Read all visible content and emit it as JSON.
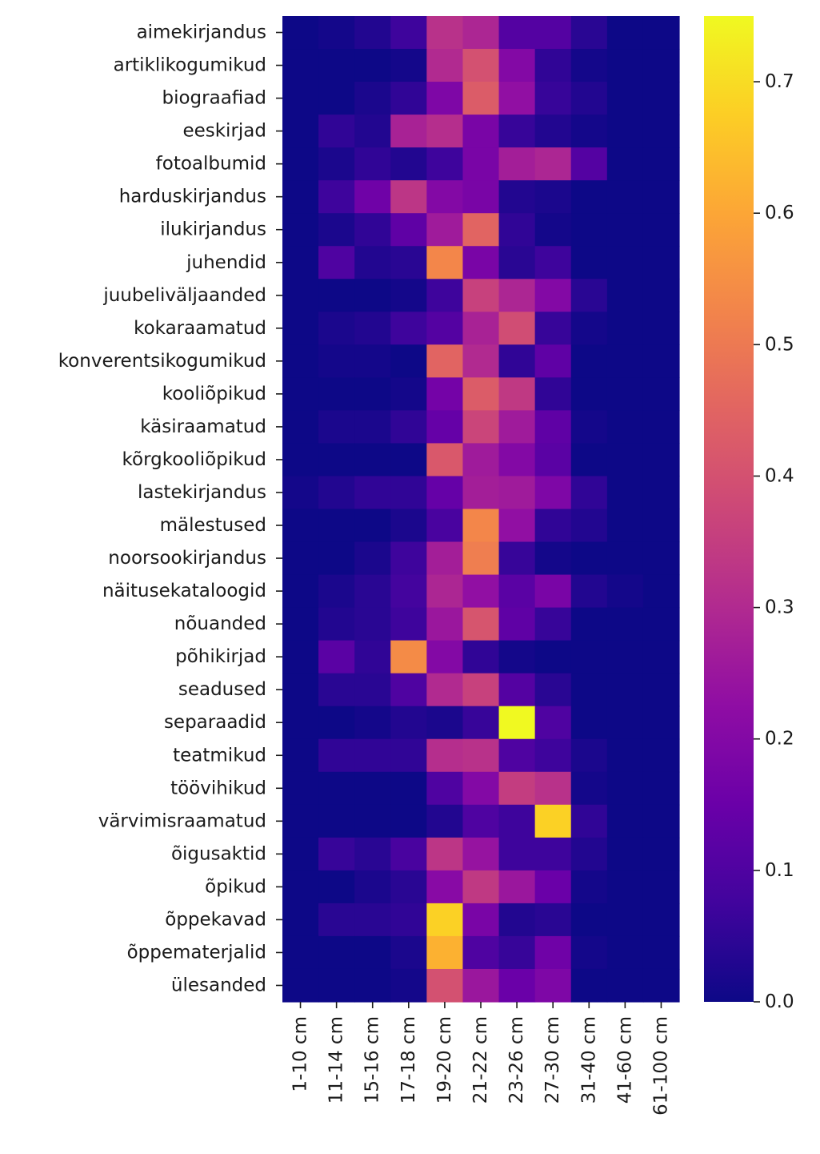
{
  "chart_data": {
    "type": "heatmap",
    "title": "",
    "xlabel": "",
    "ylabel": "",
    "colormap": "plasma",
    "vmin": 0,
    "vmax": 0.75,
    "colorbar_ticks": [
      0.0,
      0.1,
      0.2,
      0.3,
      0.4,
      0.5,
      0.6,
      0.7
    ],
    "colorbar_tick_labels": [
      "0.0",
      "0.1",
      "0.2",
      "0.3",
      "0.4",
      "0.5",
      "0.6",
      "0.7"
    ],
    "x_categories": [
      "1-10 cm",
      "11-14 cm",
      "15-16 cm",
      "17-18 cm",
      "19-20 cm",
      "21-22 cm",
      "23-26 cm",
      "27-30 cm",
      "31-40 cm",
      "41-60 cm",
      "61-100 cm"
    ],
    "y_categories": [
      "aimekirjandus",
      "artiklikogumikud",
      "biograafiad",
      "eeskirjad",
      "fotoalbumid",
      "harduskirjandus",
      "ilukirjandus",
      "juhendid",
      "juubeliväljaanded",
      "kokaraamatud",
      "konverentsikogumikud",
      "kooliõpikud",
      "käsiraamatud",
      "kõrgkooliõpikud",
      "lastekirjandus",
      "mälestused",
      "noorsookirjandus",
      "näitusekataloogid",
      "nõuanded",
      "põhikirjad",
      "seadused",
      "separaadid",
      "teatmikud",
      "töövihikud",
      "värvimisraamatud",
      "õigusaktid",
      "õpikud",
      "õppekavad",
      "õppematerjalid",
      "ülesanded"
    ],
    "values": [
      [
        0.0,
        0.01,
        0.03,
        0.07,
        0.32,
        0.29,
        0.11,
        0.11,
        0.04,
        0.0,
        0.0
      ],
      [
        0.0,
        0.0,
        0.0,
        0.01,
        0.3,
        0.4,
        0.2,
        0.05,
        0.01,
        0.0,
        0.0
      ],
      [
        0.0,
        0.0,
        0.02,
        0.05,
        0.19,
        0.43,
        0.23,
        0.06,
        0.03,
        0.0,
        0.0
      ],
      [
        0.0,
        0.05,
        0.03,
        0.28,
        0.31,
        0.18,
        0.06,
        0.03,
        0.01,
        0.0,
        0.0
      ],
      [
        0.0,
        0.02,
        0.05,
        0.03,
        0.07,
        0.18,
        0.27,
        0.29,
        0.11,
        0.0,
        0.0
      ],
      [
        0.0,
        0.07,
        0.16,
        0.33,
        0.2,
        0.18,
        0.03,
        0.02,
        0.0,
        0.0,
        0.0
      ],
      [
        0.0,
        0.02,
        0.05,
        0.13,
        0.26,
        0.45,
        0.05,
        0.01,
        0.0,
        0.0,
        0.0
      ],
      [
        0.0,
        0.1,
        0.03,
        0.04,
        0.53,
        0.18,
        0.04,
        0.07,
        0.0,
        0.0,
        0.0
      ],
      [
        0.0,
        0.0,
        0.0,
        0.01,
        0.07,
        0.36,
        0.29,
        0.2,
        0.04,
        0.0,
        0.0
      ],
      [
        0.0,
        0.02,
        0.03,
        0.07,
        0.11,
        0.28,
        0.39,
        0.06,
        0.01,
        0.0,
        0.0
      ],
      [
        0.0,
        0.01,
        0.01,
        0.0,
        0.45,
        0.3,
        0.05,
        0.13,
        0.0,
        0.0,
        0.0
      ],
      [
        0.0,
        0.0,
        0.0,
        0.01,
        0.17,
        0.43,
        0.34,
        0.05,
        0.0,
        0.0,
        0.0
      ],
      [
        0.0,
        0.02,
        0.02,
        0.05,
        0.14,
        0.37,
        0.26,
        0.13,
        0.01,
        0.0,
        0.0
      ],
      [
        0.0,
        0.0,
        0.0,
        0.0,
        0.42,
        0.26,
        0.2,
        0.12,
        0.0,
        0.0,
        0.0
      ],
      [
        0.01,
        0.03,
        0.05,
        0.05,
        0.14,
        0.27,
        0.26,
        0.19,
        0.05,
        0.0,
        0.0
      ],
      [
        0.0,
        0.0,
        0.0,
        0.02,
        0.09,
        0.53,
        0.23,
        0.05,
        0.03,
        0.0,
        0.0
      ],
      [
        0.0,
        0.0,
        0.02,
        0.07,
        0.27,
        0.51,
        0.06,
        0.01,
        0.0,
        0.0,
        0.0
      ],
      [
        0.0,
        0.02,
        0.04,
        0.08,
        0.29,
        0.23,
        0.12,
        0.18,
        0.03,
        0.01,
        0.0
      ],
      [
        0.0,
        0.03,
        0.04,
        0.07,
        0.25,
        0.41,
        0.13,
        0.06,
        0.0,
        0.0,
        0.0
      ],
      [
        0.0,
        0.12,
        0.05,
        0.54,
        0.2,
        0.05,
        0.01,
        0.0,
        0.0,
        0.0,
        0.0
      ],
      [
        0.0,
        0.04,
        0.04,
        0.1,
        0.3,
        0.36,
        0.11,
        0.04,
        0.0,
        0.0,
        0.0
      ],
      [
        0.0,
        0.0,
        0.01,
        0.03,
        0.02,
        0.06,
        0.75,
        0.1,
        0.0,
        0.0,
        0.0
      ],
      [
        0.0,
        0.05,
        0.05,
        0.05,
        0.31,
        0.32,
        0.1,
        0.07,
        0.02,
        0.0,
        0.0
      ],
      [
        0.0,
        0.0,
        0.0,
        0.0,
        0.1,
        0.2,
        0.35,
        0.32,
        0.01,
        0.0,
        0.0
      ],
      [
        0.0,
        0.0,
        0.0,
        0.0,
        0.03,
        0.1,
        0.07,
        0.68,
        0.05,
        0.0,
        0.0
      ],
      [
        0.0,
        0.06,
        0.04,
        0.09,
        0.33,
        0.24,
        0.07,
        0.07,
        0.03,
        0.0,
        0.0
      ],
      [
        0.0,
        0.0,
        0.02,
        0.04,
        0.21,
        0.34,
        0.25,
        0.15,
        0.01,
        0.0,
        0.0
      ],
      [
        0.0,
        0.04,
        0.04,
        0.05,
        0.68,
        0.18,
        0.03,
        0.04,
        0.0,
        0.0,
        0.0
      ],
      [
        0.0,
        0.0,
        0.0,
        0.02,
        0.62,
        0.1,
        0.06,
        0.16,
        0.01,
        0.0,
        0.0
      ],
      [
        0.0,
        0.0,
        0.0,
        0.01,
        0.4,
        0.25,
        0.15,
        0.19,
        0.0,
        0.0,
        0.0
      ]
    ]
  }
}
